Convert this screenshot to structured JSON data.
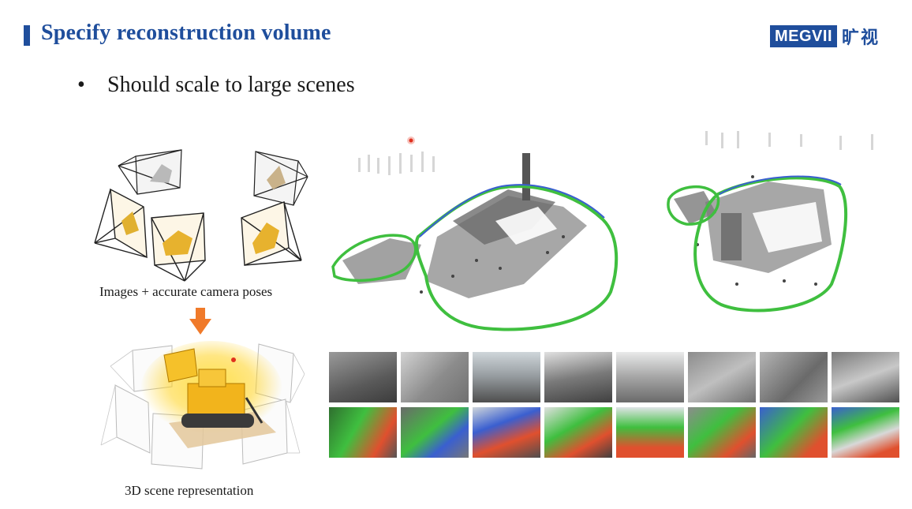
{
  "slide": {
    "title": "Specify reconstruction volume",
    "bullet_text": "Should scale to large scenes",
    "caption_images": "Images + accurate camera poses",
    "caption_scene": "3D scene representation",
    "logo_text": "MEGVII",
    "logo_cn": "旷视"
  },
  "colors": {
    "accent": "#1f4e9c",
    "arrow": "#f07a2a",
    "boundary_green": "#3fbf3f",
    "boundary_blue": "#3a5fd0"
  },
  "thumbnails": {
    "rgb": [
      "frame-1",
      "frame-2",
      "frame-3",
      "frame-4",
      "frame-5",
      "frame-6",
      "frame-7",
      "frame-8"
    ],
    "depth": [
      "depth-1",
      "depth-2",
      "depth-3",
      "depth-4",
      "depth-5",
      "depth-6",
      "depth-7",
      "depth-8"
    ]
  }
}
